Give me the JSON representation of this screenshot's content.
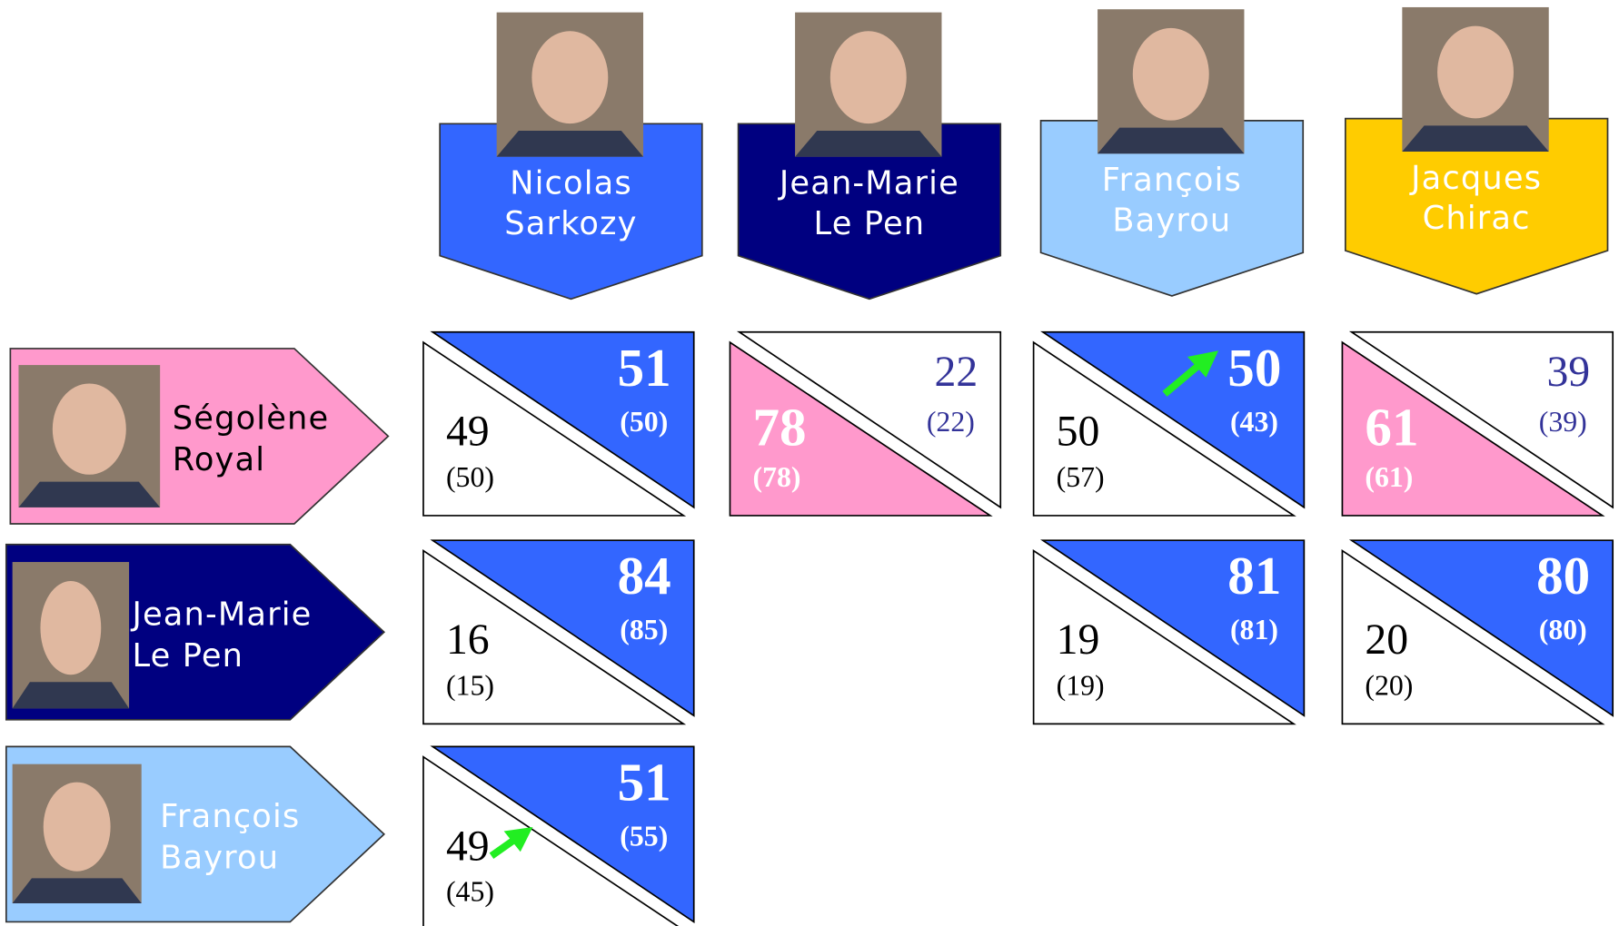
{
  "columns": [
    {
      "name": [
        "Nicolas",
        "Sarkozy"
      ],
      "color": "#3366ff"
    },
    {
      "name": [
        "Jean-Marie",
        "Le Pen"
      ],
      "color": "#000080"
    },
    {
      "name": [
        "François",
        "Bayrou"
      ],
      "color": "#99ccff"
    },
    {
      "name": [
        "Jacques",
        "Chirac"
      ],
      "color": "#ffcc00"
    }
  ],
  "rows": [
    {
      "name": [
        "Ségolène",
        "Royal"
      ],
      "color": "#ff99cc",
      "text_color": "#000000",
      "cells": [
        {
          "left": "49",
          "left_prev": "(50)",
          "right": "51",
          "right_prev": "(50)"
        },
        {
          "left": "78",
          "left_prev": "(78)",
          "right": "22",
          "right_prev": "(22)"
        },
        {
          "left": "50",
          "left_prev": "(57)",
          "right": "50",
          "right_prev": "(43)"
        },
        {
          "left": "61",
          "left_prev": "(61)",
          "right": "39",
          "right_prev": "(39)"
        }
      ]
    },
    {
      "name": [
        "Jean-Marie",
        "Le Pen"
      ],
      "color": "#000080",
      "text_color": "#ffffff",
      "cells": [
        {
          "left": "16",
          "left_prev": "(15)",
          "right": "84",
          "right_prev": "(85)"
        },
        null,
        {
          "left": "19",
          "left_prev": "(19)",
          "right": "81",
          "right_prev": "(81)"
        },
        {
          "left": "20",
          "left_prev": "(20)",
          "right": "80",
          "right_prev": "(80)"
        }
      ]
    },
    {
      "name": [
        "François",
        "Bayrou"
      ],
      "color": "#99ccff",
      "text_color": "#ffffff",
      "cells": [
        {
          "left": "49",
          "left_prev": "(45)",
          "right": "51",
          "right_prev": "(55)"
        },
        null,
        null,
        null
      ]
    }
  ]
}
